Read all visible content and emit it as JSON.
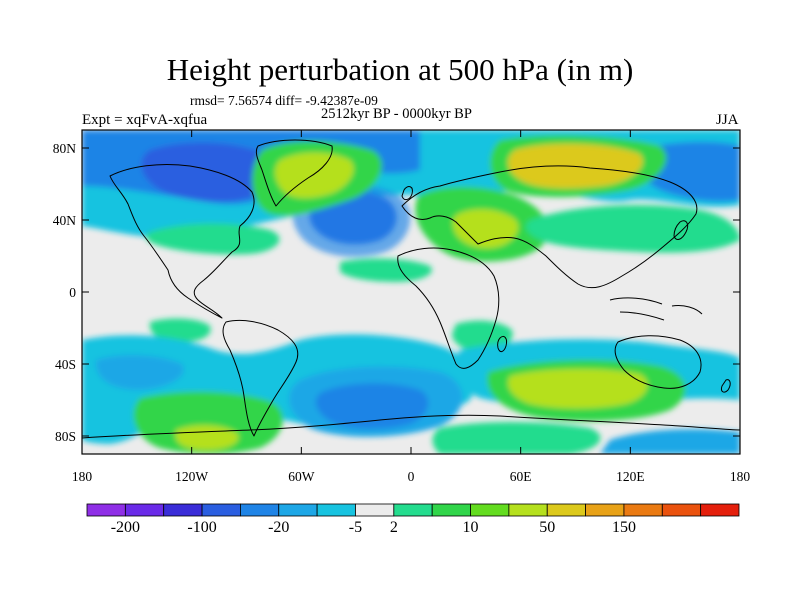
{
  "title": "Height perturbation at 500 hPa (in m)",
  "stats": "rmsd= 7.56574 diff= -9.42387e-09",
  "period": "2512kyr BP - 0000kyr BP",
  "experiment": "Expt = xqFvA-xqfua",
  "season": "JJA",
  "lat_labels": [
    "80N",
    "40N",
    "0",
    "40S",
    "80S"
  ],
  "lon_labels": [
    "180",
    "120W",
    "60W",
    "0",
    "60E",
    "120E",
    "180"
  ],
  "colorbar": {
    "labels": [
      "-200",
      "-100",
      "-20",
      "-5",
      "2",
      "10",
      "50",
      "150"
    ],
    "colors": [
      "#8f2fe6",
      "#6a2ae8",
      "#3a2dd8",
      "#2a5ee0",
      "#1f84e6",
      "#1ea7e6",
      "#17c3e0",
      "#ececec",
      "#24dc8e",
      "#31d54a",
      "#63dc1f",
      "#b5e01e",
      "#dcc91c",
      "#e8a217",
      "#ea7a12",
      "#ea520e",
      "#e41f0c"
    ]
  },
  "palette": {
    "c_neg4": "#2a5ee0",
    "c_neg3": "#1f84e6",
    "c_neg2": "#1ea7e6",
    "c_neg1": "#17c3e0",
    "c_zero": "#ececec",
    "c_pos1": "#24dc8e",
    "c_pos2": "#31d54a",
    "c_pos3": "#63dc1f",
    "c_pos4": "#b5e01e",
    "c_pos5": "#dcc91c"
  }
}
